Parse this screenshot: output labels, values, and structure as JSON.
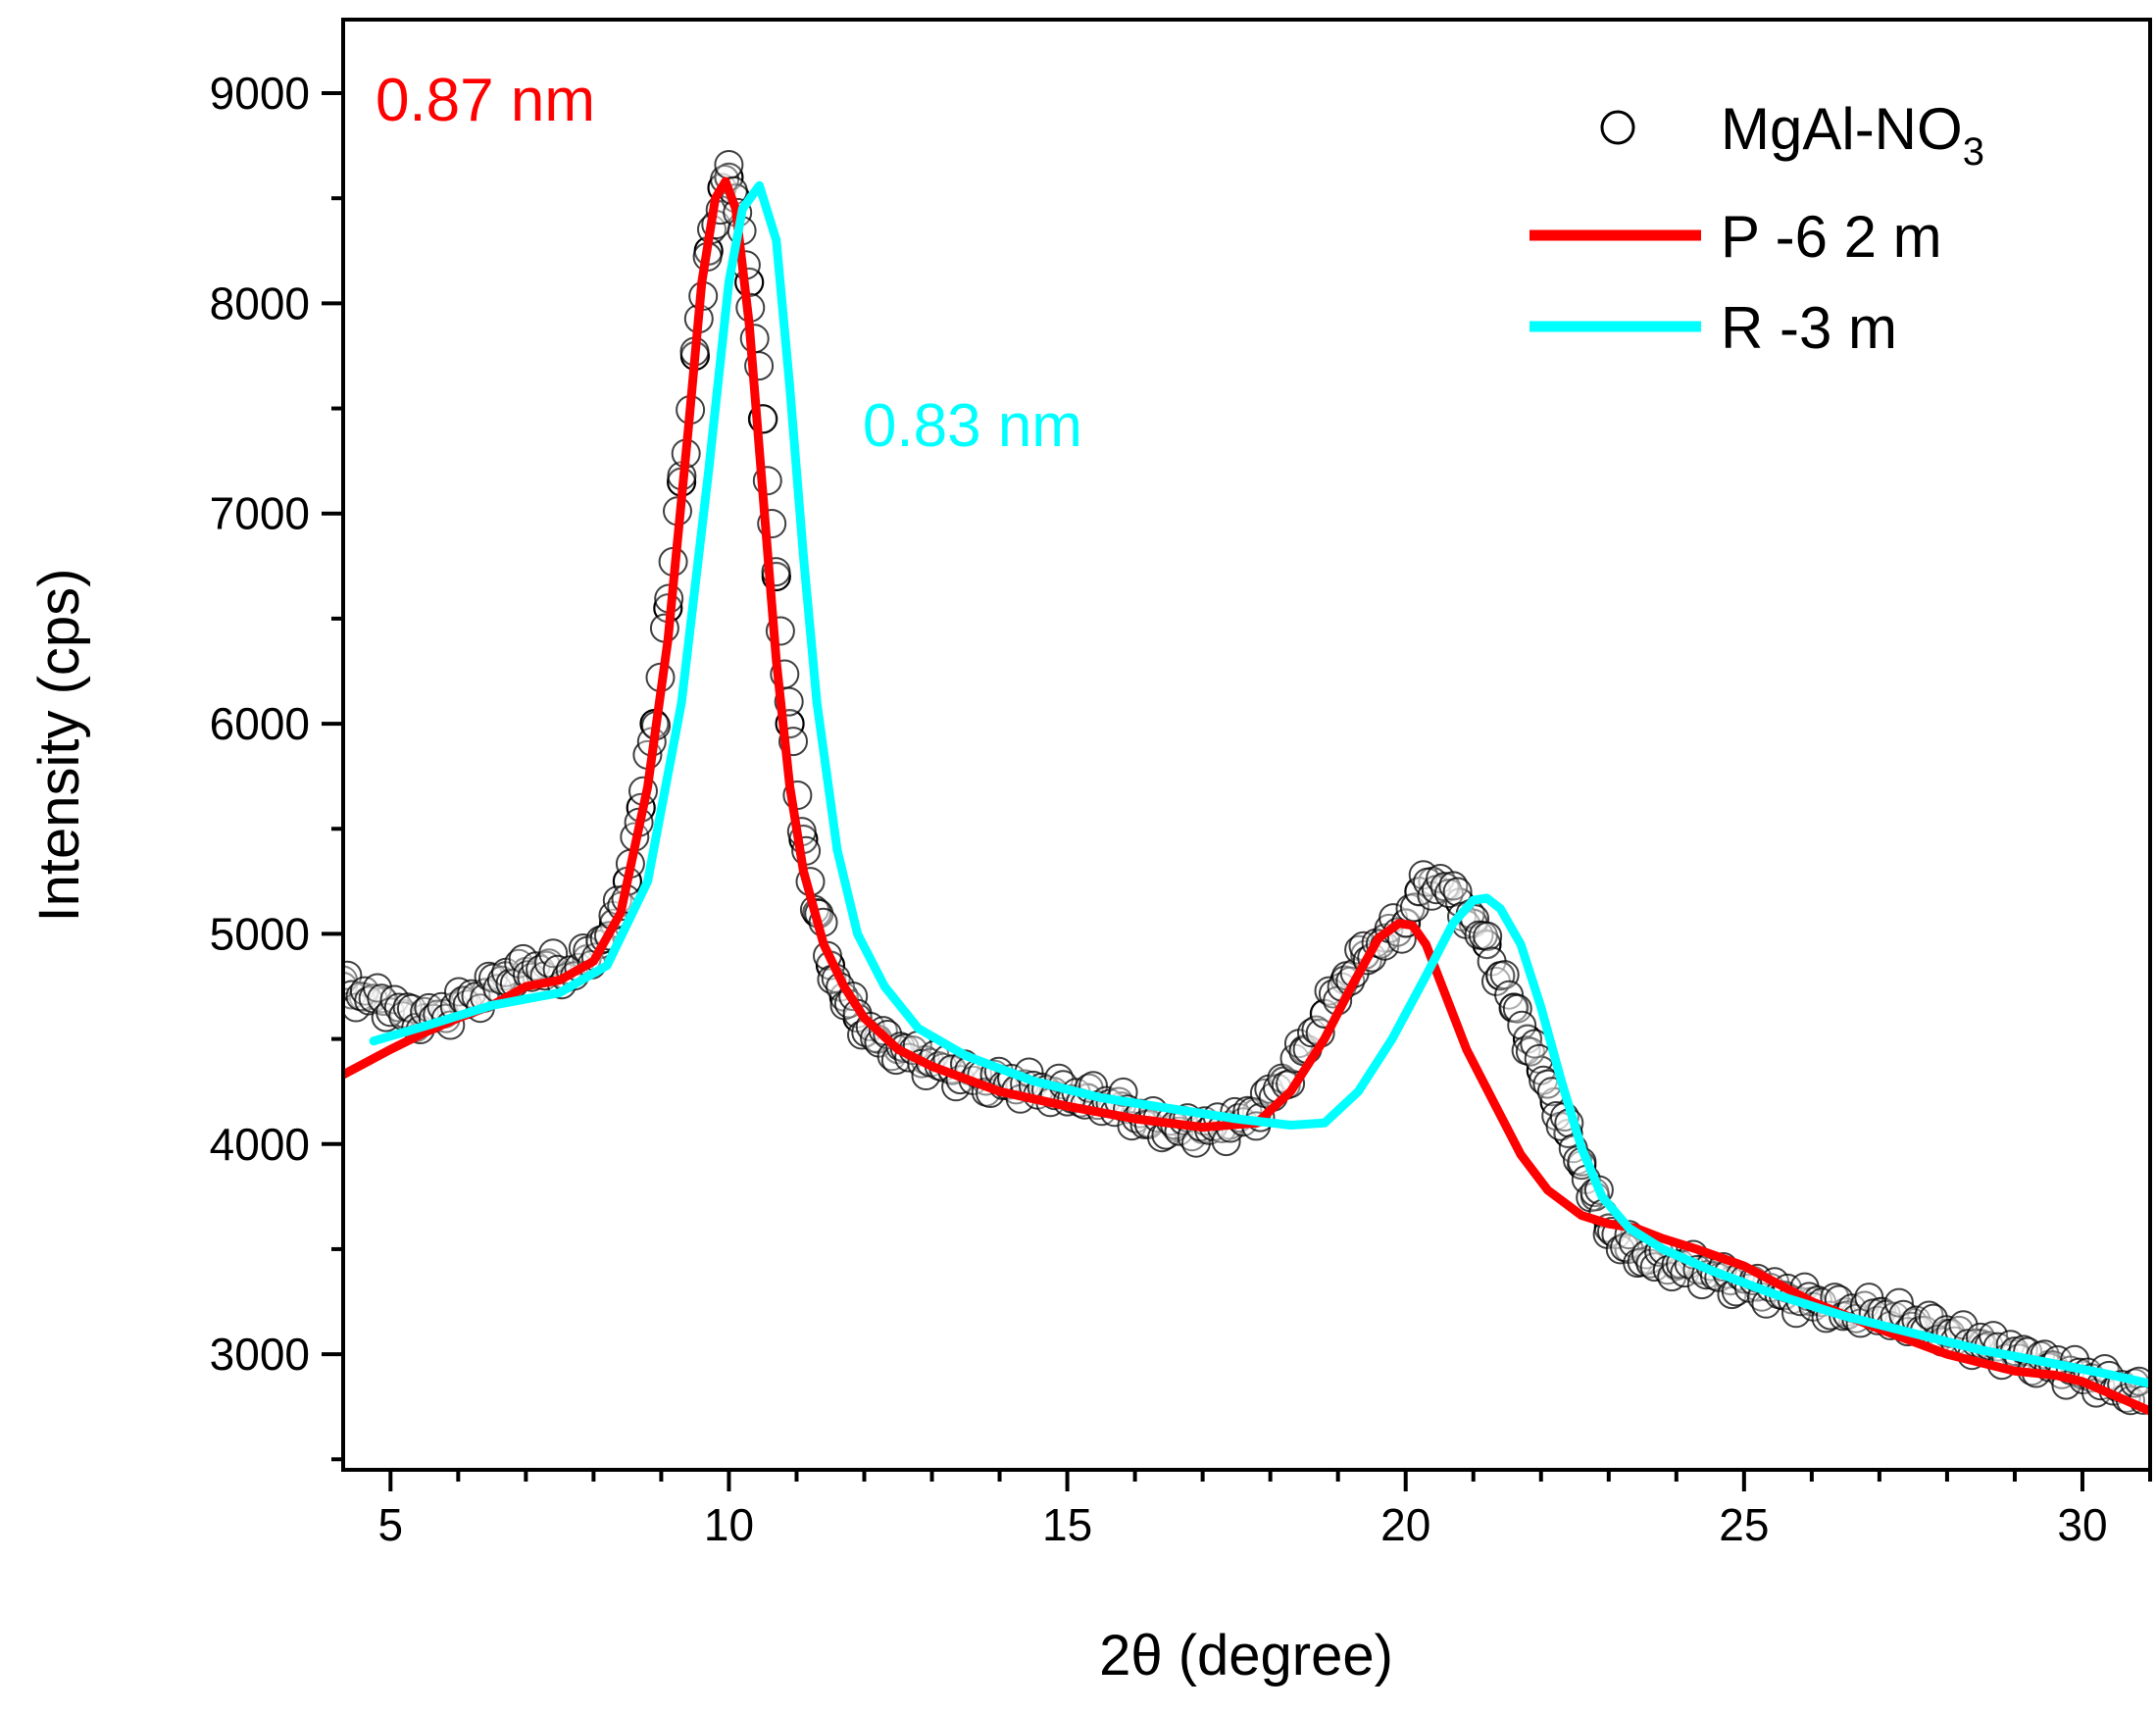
{
  "chart_data": {
    "type": "scatter",
    "title": "",
    "xlabel": "2θ (degree)",
    "ylabel": "Intensity (cps)",
    "xlim": [
      4.3,
      31.0
    ],
    "ylim": [
      2450,
      9350
    ],
    "xticks": [
      5,
      10,
      15,
      20,
      25,
      30
    ],
    "xtick_labels": [
      "5",
      "10",
      "15",
      "20",
      "25",
      "30"
    ],
    "yticks": [
      3000,
      4000,
      5000,
      6000,
      7000,
      8000,
      9000
    ],
    "ytick_labels": [
      "3000",
      "4000",
      "5000",
      "6000",
      "7000",
      "8000",
      "9000"
    ],
    "grid": false,
    "legend_position": "top-right",
    "series": [
      {
        "name": "MgAl-NO",
        "name_subscript": "3",
        "kind": "scatter",
        "marker": "open-circle",
        "color": "#000000",
        "x": [
          4.3,
          4.6,
          4.9,
          5.2,
          5.5,
          5.8,
          6.1,
          6.4,
          6.7,
          7.0,
          7.3,
          7.6,
          7.9,
          8.1,
          8.3,
          8.5,
          8.7,
          8.9,
          9.1,
          9.3,
          9.5,
          9.7,
          9.9,
          10.0,
          10.1,
          10.3,
          10.5,
          10.7,
          10.9,
          11.1,
          11.3,
          11.5,
          11.7,
          11.9,
          12.2,
          12.5,
          12.9,
          13.3,
          13.8,
          14.3,
          14.8,
          15.3,
          15.8,
          16.2,
          16.6,
          17.0,
          17.4,
          17.8,
          18.2,
          18.5,
          18.8,
          19.1,
          19.4,
          19.7,
          20.0,
          20.2,
          20.4,
          20.6,
          20.8,
          21.0,
          21.2,
          21.4,
          21.6,
          21.8,
          22.0,
          22.2,
          22.4,
          22.6,
          22.8,
          23.0,
          23.3,
          23.6,
          24.0,
          24.4,
          24.8,
          25.2,
          25.6,
          26.0,
          26.5,
          27.0,
          27.5,
          28.0,
          28.5,
          29.0,
          29.5,
          30.0,
          30.5,
          30.9
        ],
        "y": [
          4750,
          4700,
          4680,
          4620,
          4600,
          4620,
          4680,
          4720,
          4800,
          4820,
          4850,
          4800,
          4880,
          4950,
          5050,
          5250,
          5600,
          6000,
          6550,
          7150,
          7750,
          8250,
          8550,
          8600,
          8500,
          8100,
          7450,
          6700,
          6000,
          5450,
          5100,
          4850,
          4700,
          4600,
          4500,
          4450,
          4400,
          4350,
          4300,
          4280,
          4250,
          4220,
          4180,
          4100,
          4080,
          4070,
          4090,
          4150,
          4300,
          4450,
          4620,
          4780,
          4900,
          4980,
          5050,
          5200,
          5250,
          5220,
          5150,
          5050,
          4950,
          4800,
          4650,
          4500,
          4350,
          4200,
          4050,
          3900,
          3750,
          3600,
          3500,
          3450,
          3420,
          3400,
          3350,
          3320,
          3280,
          3250,
          3200,
          3200,
          3150,
          3100,
          3050,
          3000,
          2950,
          2900,
          2850,
          2800
        ]
      },
      {
        "name": "P -6 2 m",
        "kind": "line",
        "color": "#ff0000",
        "x": [
          4.3,
          5.0,
          5.5,
          6.0,
          6.5,
          7.0,
          7.5,
          8.0,
          8.4,
          8.8,
          9.1,
          9.4,
          9.6,
          9.8,
          9.95,
          10.1,
          10.3,
          10.5,
          10.7,
          10.9,
          11.1,
          11.4,
          11.7,
          12.0,
          12.5,
          13.0,
          14.0,
          15.0,
          16.0,
          17.0,
          17.8,
          18.3,
          18.8,
          19.2,
          19.6,
          19.9,
          20.1,
          20.3,
          20.6,
          20.9,
          21.3,
          21.7,
          22.1,
          22.6,
          23.0,
          23.4,
          23.8,
          24.3,
          25.0,
          26.0,
          27.0,
          28.0,
          29.0,
          29.6,
          30.0,
          30.5,
          31.0
        ],
        "y": [
          4330,
          4450,
          4530,
          4600,
          4660,
          4750,
          4780,
          4870,
          5100,
          5700,
          6400,
          7400,
          8100,
          8500,
          8580,
          8450,
          7900,
          7100,
          6300,
          5700,
          5300,
          4950,
          4750,
          4600,
          4450,
          4370,
          4250,
          4180,
          4120,
          4080,
          4100,
          4250,
          4500,
          4750,
          4980,
          5050,
          5040,
          4950,
          4700,
          4450,
          4200,
          3950,
          3780,
          3660,
          3620,
          3600,
          3550,
          3500,
          3420,
          3250,
          3120,
          3000,
          2920,
          2900,
          2870,
          2800,
          2730
        ]
      },
      {
        "name": "R -3 m",
        "kind": "line",
        "color": "#00ffff",
        "x": [
          4.75,
          5.5,
          6.5,
          7.5,
          8.2,
          8.8,
          9.3,
          9.7,
          10.0,
          10.2,
          10.45,
          10.7,
          10.9,
          11.1,
          11.3,
          11.6,
          11.9,
          12.3,
          12.8,
          13.5,
          14.5,
          15.5,
          16.5,
          17.5,
          18.3,
          18.8,
          19.3,
          19.8,
          20.3,
          20.7,
          21.0,
          21.2,
          21.4,
          21.7,
          22.0,
          22.3,
          22.6,
          22.9,
          23.3,
          23.8,
          24.5,
          25.5,
          26.5,
          27.5,
          28.5,
          29.5,
          30.3,
          31.0
        ],
        "y": [
          4490,
          4560,
          4660,
          4720,
          4850,
          5250,
          6100,
          7200,
          8100,
          8450,
          8560,
          8300,
          7600,
          6800,
          6100,
          5400,
          5000,
          4750,
          4550,
          4420,
          4300,
          4220,
          4170,
          4120,
          4090,
          4100,
          4250,
          4500,
          4800,
          5050,
          5160,
          5170,
          5120,
          4950,
          4650,
          4300,
          3980,
          3750,
          3600,
          3500,
          3400,
          3280,
          3180,
          3100,
          3020,
          2960,
          2910,
          2860
        ]
      }
    ],
    "annotations": [
      {
        "text": "0.87 nm",
        "color": "#ff0000",
        "anchor_x": 6.4,
        "anchor_y": 8870
      },
      {
        "text": "0.83 nm",
        "color": "#00ffff",
        "anchor_x": 13.6,
        "anchor_y": 7320
      }
    ]
  }
}
